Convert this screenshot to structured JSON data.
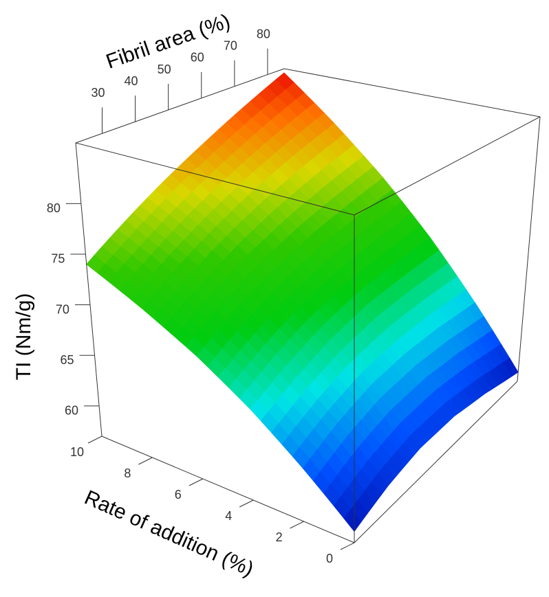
{
  "chart_data": {
    "type": "surface",
    "x_label": "Fibril area (%)",
    "y_label": "Rate of addition (%)",
    "z_label": "TI (Nm/g)",
    "x": [
      22,
      35,
      47,
      60,
      72,
      85
    ],
    "y": [
      0,
      2,
      4,
      6,
      8,
      10
    ],
    "z": [
      [
        58,
        59.2,
        59.9,
        59.9,
        59.2,
        58
      ],
      [
        61.8,
        63.3,
        64.3,
        64.7,
        64.6,
        64.1
      ],
      [
        65.4,
        67.0,
        68.3,
        69.3,
        69.7,
        70.0
      ],
      [
        68.6,
        70.5,
        72.1,
        73.5,
        74.5,
        75.5
      ],
      [
        71.4,
        73.6,
        75.5,
        77.4,
        79.0,
        80.6
      ],
      [
        74,
        76.4,
        78.6,
        80.9,
        83.1,
        85.5
      ]
    ],
    "xlim": [
      22,
      85
    ],
    "ylim": [
      0,
      10
    ],
    "zlim": [
      57,
      86
    ],
    "xticks": [
      30,
      40,
      50,
      60,
      70,
      80
    ],
    "yticks": [
      0,
      2,
      4,
      6,
      8,
      10
    ],
    "zticks": [
      60,
      65,
      70,
      75,
      80
    ],
    "colormap": [
      "#0000a0",
      "#0050ff",
      "#00e5e5",
      "#00cc10",
      "#30c800",
      "#d8d800",
      "#ff7000",
      "#e80000"
    ]
  }
}
